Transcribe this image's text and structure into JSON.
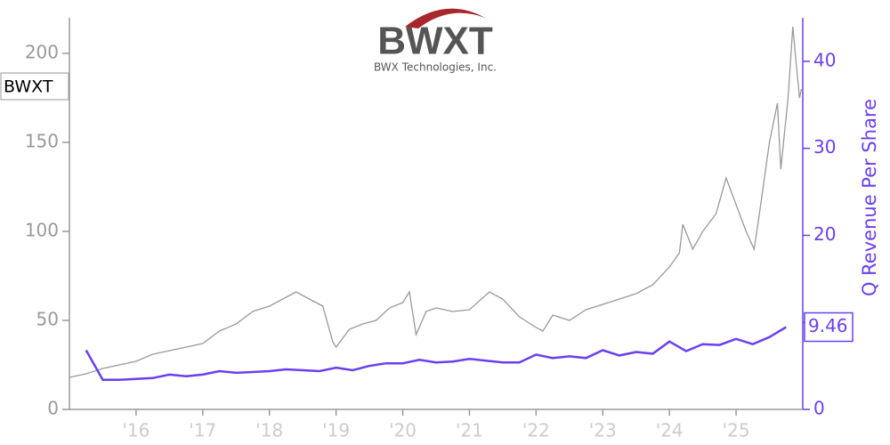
{
  "chart_data": {
    "type": "line",
    "logo_text": "BWXT",
    "logo_subtitle": "BWX Technologies, Inc.",
    "y2_label": "Q Revenue Per Share",
    "series": [
      {
        "name": "BWXT",
        "color": "#999999",
        "x": [
          2015.0,
          2015.25,
          2015.5,
          2015.75,
          2016.0,
          2016.25,
          2016.5,
          2016.75,
          2017.0,
          2017.25,
          2017.5,
          2017.75,
          2018.0,
          2018.25,
          2018.4,
          2018.6,
          2018.8,
          2018.95,
          2019.0,
          2019.2,
          2019.4,
          2019.6,
          2019.8,
          2020.0,
          2020.1,
          2020.2,
          2020.35,
          2020.5,
          2020.75,
          2021.0,
          2021.3,
          2021.5,
          2021.75,
          2022.0,
          2022.1,
          2022.25,
          2022.5,
          2022.75,
          2023.0,
          2023.25,
          2023.5,
          2023.75,
          2024.0,
          2024.15,
          2024.2,
          2024.35,
          2024.5,
          2024.7,
          2024.85,
          2025.0,
          2025.15,
          2025.27,
          2025.35,
          2025.5,
          2025.62,
          2025.67,
          2025.78,
          2025.85,
          2025.9,
          2025.95,
          2025.98
        ],
        "values": [
          18,
          20,
          23,
          25,
          27,
          31,
          33,
          35,
          37,
          44,
          48,
          55,
          58,
          63,
          66,
          62,
          58,
          38,
          35,
          45,
          48,
          50,
          57,
          60,
          66,
          42,
          55,
          57,
          55,
          56,
          66,
          62,
          52,
          46,
          44,
          53,
          50,
          56,
          59,
          62,
          65,
          70,
          80,
          88,
          104,
          90,
          100,
          110,
          130,
          115,
          100,
          90,
          110,
          150,
          172,
          135,
          175,
          215,
          195,
          175,
          180
        ]
      },
      {
        "name": "Q Revenue Per Share",
        "color": "#6a3ff0",
        "axis": "y2",
        "x": [
          2015.25,
          2015.5,
          2015.75,
          2016.0,
          2016.25,
          2016.5,
          2016.75,
          2017.0,
          2017.25,
          2017.5,
          2017.75,
          2018.0,
          2018.25,
          2018.5,
          2018.75,
          2019.0,
          2019.25,
          2019.5,
          2019.75,
          2020.0,
          2020.25,
          2020.5,
          2020.75,
          2021.0,
          2021.25,
          2021.5,
          2021.75,
          2022.0,
          2022.25,
          2022.5,
          2022.75,
          2023.0,
          2023.25,
          2023.5,
          2023.75,
          2024.0,
          2024.25,
          2024.5,
          2024.75,
          2025.0,
          2025.25,
          2025.5,
          2025.75
        ],
        "values": [
          6.8,
          3.4,
          3.4,
          3.5,
          3.6,
          4.0,
          3.8,
          4.0,
          4.4,
          4.2,
          4.3,
          4.4,
          4.6,
          4.5,
          4.4,
          4.8,
          4.5,
          5.0,
          5.3,
          5.3,
          5.7,
          5.4,
          5.5,
          5.8,
          5.6,
          5.4,
          5.4,
          6.3,
          5.9,
          6.1,
          5.9,
          6.8,
          6.2,
          6.6,
          6.4,
          7.8,
          6.7,
          7.5,
          7.4,
          8.1,
          7.5,
          8.3,
          9.46
        ]
      }
    ],
    "xlim": [
      2015.0,
      2026.0
    ],
    "xticks": [
      {
        "value": 2016,
        "label": "'16"
      },
      {
        "value": 2017,
        "label": "'17"
      },
      {
        "value": 2018,
        "label": "'18"
      },
      {
        "value": 2019,
        "label": "'19"
      },
      {
        "value": 2020,
        "label": "'20"
      },
      {
        "value": 2021,
        "label": "'21"
      },
      {
        "value": 2022,
        "label": "'22"
      },
      {
        "value": 2023,
        "label": "'23"
      },
      {
        "value": 2024,
        "label": "'24"
      },
      {
        "value": 2025,
        "label": "'25"
      }
    ],
    "ylim": [
      0,
      220
    ],
    "yticks": [
      0,
      50,
      100,
      150,
      200
    ],
    "y2lim": [
      0,
      45
    ],
    "y2ticks": [
      0,
      10,
      20,
      30,
      40
    ]
  }
}
